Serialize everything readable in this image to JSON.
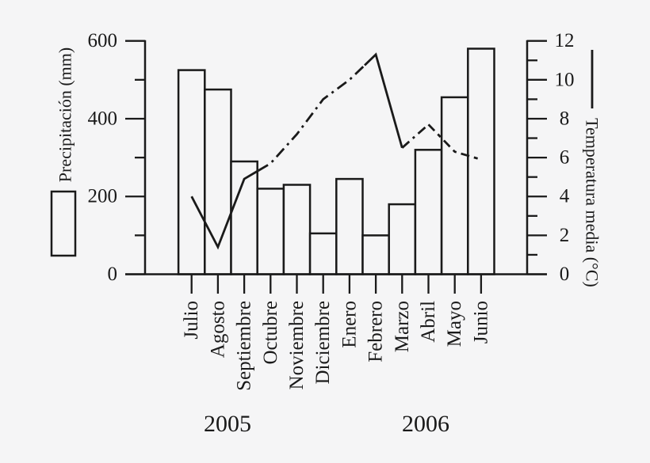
{
  "chart_data": {
    "type": "bar+line",
    "title": "",
    "categories": [
      "Julio",
      "Agosto",
      "Septiembre",
      "Octubre",
      "Noviembre",
      "Diciembre",
      "Enero",
      "Febrero",
      "Marzo",
      "Abril",
      "Mayo",
      "Junio"
    ],
    "series": [
      {
        "name": "Precipitación",
        "type": "bar",
        "axis": "left",
        "values": [
          525,
          475,
          290,
          220,
          230,
          105,
          245,
          100,
          180,
          320,
          455,
          580
        ]
      },
      {
        "name": "Temperatura media",
        "type": "line",
        "axis": "right",
        "values": [
          4.0,
          1.4,
          4.9,
          5.7,
          7.2,
          9.0,
          10.0,
          11.3,
          6.5,
          7.7,
          6.3,
          5.9
        ]
      }
    ],
    "left_axis": {
      "label": "Precipitación (mm)",
      "min": 0,
      "max": 600,
      "tick_labels": [
        "0",
        "200",
        "400",
        "600"
      ],
      "major_step": 200,
      "minor_step": 100
    },
    "right_axis": {
      "label": "Temperatura media (°C)",
      "min": 0,
      "max": 12,
      "tick_labels": [
        "0",
        "2",
        "4",
        "6",
        "8",
        "10",
        "12"
      ],
      "major_step": 2,
      "minor_step": 1
    },
    "year_groups": [
      {
        "label": "2005",
        "months": [
          "Julio",
          "Agosto",
          "Septiembre",
          "Octubre",
          "Noviembre",
          "Diciembre"
        ]
      },
      {
        "label": "2006",
        "months": [
          "Enero",
          "Febrero",
          "Marzo",
          "Abril",
          "Mayo",
          "Junio"
        ]
      }
    ],
    "legend": {
      "bar_swatch_for": "Precipitación (mm)",
      "line_swatch_for": "Temperatura media (°C)"
    },
    "grid": false,
    "legend_position": "outside left / outside right",
    "colors": {
      "ink": "#1a1a1a",
      "background": "#f5f5f6",
      "bar_fill": "#f5f5f6"
    }
  }
}
